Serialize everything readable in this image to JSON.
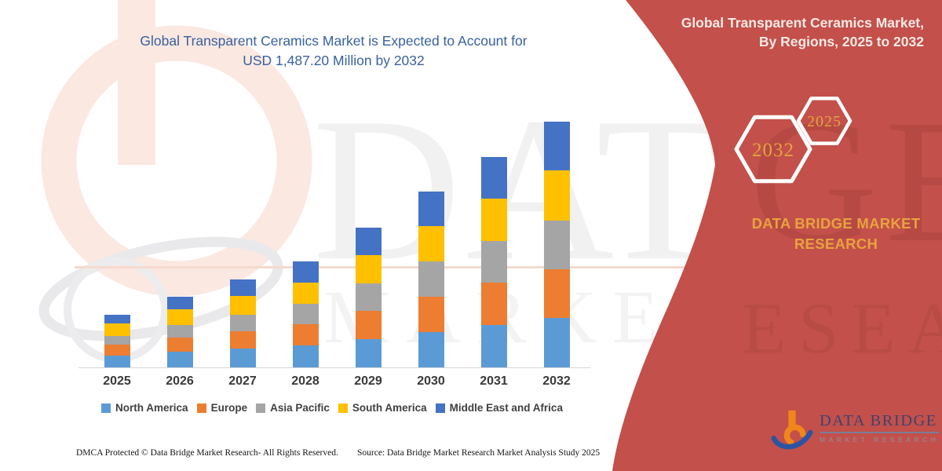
{
  "title": {
    "line1": "Global Transparent Ceramics Market is Expected to Account for",
    "line2": "USD 1,487.20 Million by 2032"
  },
  "chart_data": {
    "type": "bar",
    "stacked": true,
    "unit": "USD Million",
    "categories": [
      "2025",
      "2026",
      "2027",
      "2028",
      "2029",
      "2030",
      "2031",
      "2032"
    ],
    "series": [
      {
        "name": "North America",
        "color": "#5B9BD5",
        "values": [
          73.0,
          93.0,
          112.0,
          131.0,
          172.0,
          215.0,
          257.0,
          300.9
        ]
      },
      {
        "name": "Europe",
        "color": "#ED7D31",
        "values": [
          66.5,
          88.0,
          108.0,
          128.5,
          170.0,
          213.5,
          255.0,
          295.1
        ]
      },
      {
        "name": "Asia Pacific",
        "color": "#A5A5A5",
        "values": [
          51.0,
          76.0,
          99.5,
          124.0,
          167.0,
          211.5,
          254.0,
          294.6
        ]
      },
      {
        "name": "South America",
        "color": "#FFC000",
        "values": [
          76.0,
          95.0,
          113.5,
          132.0,
          172.5,
          215.0,
          257.0,
          301.2
        ]
      },
      {
        "name": "Middle East and Africa",
        "color": "#4472C4",
        "values": [
          51.8,
          75.6,
          99.2,
          125.9,
          164.2,
          209.3,
          250.4,
          295.4
        ]
      }
    ],
    "totals_estimated": [
      318.3,
      427.6,
      532.2,
      641.4,
      845.7,
      1064.3,
      1273.4,
      1487.2
    ],
    "ylim": [
      0,
      1487.2
    ],
    "xlabel": "",
    "ylabel": "",
    "grid": false,
    "legend_position": "bottom",
    "note": "Region values estimated from stacked bar heights; 2032 total labeled as USD 1,487.20 Million"
  },
  "side_panel": {
    "heading_line1": "Global Transparent Ceramics Market,",
    "heading_line2": "By Regions, 2025 to 2032",
    "hexagons": [
      {
        "label": "2032"
      },
      {
        "label": "2025"
      }
    ],
    "brand_text": "DATA BRIDGE MARKET RESEARCH",
    "accent": "#C3504A",
    "gold": "#E2A43C"
  },
  "watermark": {
    "line1": "DATA BRIDGE",
    "line2": "MARKET RESEARCH",
    "red_fragment_1": "GE",
    "red_fragment_2": "ESEARCH"
  },
  "logo": {
    "name": "DATA BRIDGE",
    "tagline": "MARKET RESEARCH"
  },
  "footer": {
    "dmca": "DMCA Protected © Data Bridge Market Research- All Rights Reserved.",
    "source": "Source: Data Bridge Market Research Market Analysis Study 2025"
  }
}
